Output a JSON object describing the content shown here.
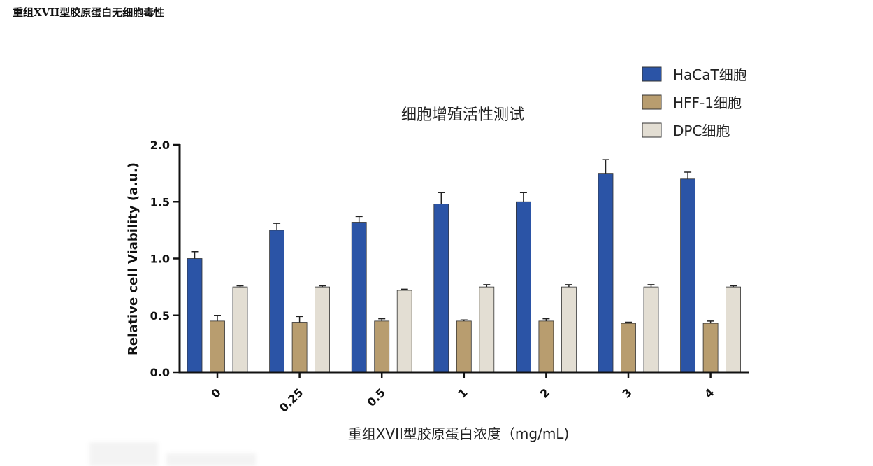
{
  "header": {
    "title": "重组XVII型胶原蛋白无细胞毒性"
  },
  "chart_data": {
    "type": "bar",
    "title": "细胞增殖活性测试",
    "xlabel": "重组XVII型胶原蛋白浓度（mg/mL)",
    "ylabel": "Relative cell Viability (a.u.)",
    "ylim": [
      0,
      2.0
    ],
    "yticks": [
      "0.0",
      "0.5",
      "1.0",
      "1.5",
      "2.0"
    ],
    "categories": [
      "0",
      "0.25",
      "0.5",
      "1",
      "2",
      "3",
      "4"
    ],
    "legend_position": "top-right",
    "series": [
      {
        "name": "HaCaT细胞",
        "color": "#2b54a6",
        "values": [
          1.0,
          1.25,
          1.32,
          1.48,
          1.5,
          1.75,
          1.7
        ],
        "errors": [
          0.06,
          0.06,
          0.05,
          0.1,
          0.08,
          0.12,
          0.06
        ]
      },
      {
        "name": "HFF-1细胞",
        "color": "#b89d6f",
        "values": [
          0.45,
          0.44,
          0.45,
          0.45,
          0.45,
          0.43,
          0.43
        ],
        "errors": [
          0.05,
          0.05,
          0.02,
          0.01,
          0.02,
          0.01,
          0.02
        ]
      },
      {
        "name": "DPC细胞",
        "color": "#e3ded3",
        "values": [
          0.75,
          0.75,
          0.72,
          0.75,
          0.75,
          0.75,
          0.75
        ],
        "errors": [
          0.01,
          0.01,
          0.01,
          0.02,
          0.02,
          0.02,
          0.01
        ]
      }
    ]
  }
}
